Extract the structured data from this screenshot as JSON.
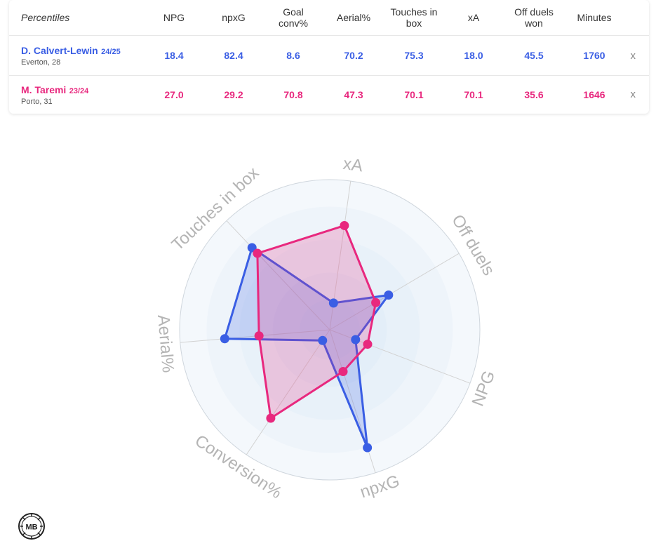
{
  "table": {
    "title": "Percentiles",
    "columns": [
      "NPG",
      "npxG",
      "Goal conv%",
      "Aerial%",
      "Touches in box",
      "xA",
      "Off duels won",
      "Minutes"
    ],
    "remove_label": "x",
    "players": [
      {
        "name": "D. Calvert-Lewin",
        "season": "24/25",
        "team": "Everton, 28",
        "values": [
          "18.4",
          "82.4",
          "8.6",
          "70.2",
          "75.3",
          "18.0",
          "45.5",
          "1760"
        ],
        "color": "#3a5ee4"
      },
      {
        "name": "M. Taremi",
        "season": "23/24",
        "team": "Porto, 31",
        "values": [
          "27.0",
          "29.2",
          "70.8",
          "47.3",
          "70.1",
          "70.1",
          "35.6",
          "1646"
        ],
        "color": "#e8287e"
      }
    ]
  },
  "chart_data": {
    "type": "radar",
    "axes": [
      "xA",
      "Off duels",
      "NPG",
      "npxG",
      "Conversion%",
      "Aerial%",
      "Touches in box"
    ],
    "range": [
      0,
      100
    ],
    "series": [
      {
        "name": "D. Calvert-Lewin",
        "color": "#3a5ee4",
        "values": [
          18.0,
          45.5,
          18.4,
          82.4,
          8.6,
          70.2,
          75.3
        ]
      },
      {
        "name": "M. Taremi",
        "color": "#e8287e",
        "values": [
          70.1,
          35.6,
          27.0,
          29.2,
          70.8,
          47.3,
          70.1
        ]
      }
    ]
  },
  "logo_text": "MB"
}
